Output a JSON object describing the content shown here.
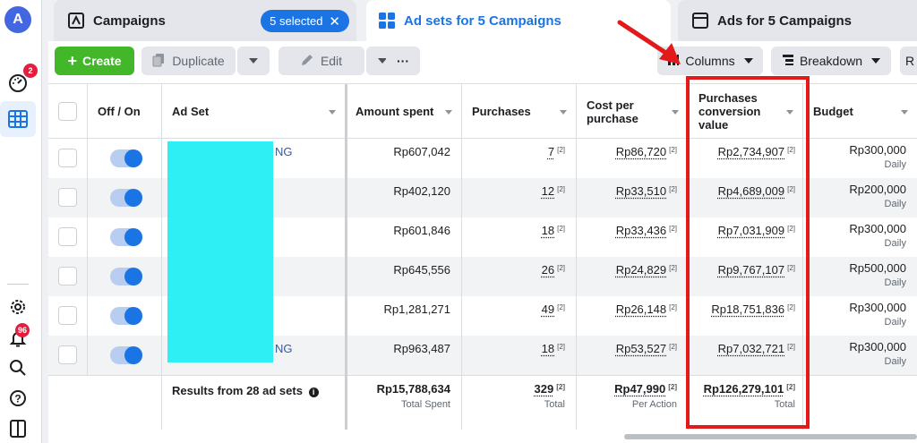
{
  "rail": {
    "avatar_letter": "A",
    "performance_badge": "2",
    "notifications_badge": "96"
  },
  "tabs": {
    "campaigns": {
      "label": "Campaigns",
      "selected_pill": "5 selected"
    },
    "adsets": {
      "label": "Ad sets for 5 Campaigns"
    },
    "ads": {
      "label": "Ads for 5 Campaigns"
    }
  },
  "toolbar": {
    "create_label": "Create",
    "duplicate_label": "Duplicate",
    "edit_label": "Edit",
    "more_label": "···",
    "columns_label": "Columns",
    "breakdown_label": "Breakdown",
    "r_label": "R"
  },
  "table": {
    "headers": {
      "off_on": "Off / On",
      "ad_set": "Ad Set",
      "amount_spent": "Amount spent",
      "purchases": "Purchases",
      "cost_per_purchase": "Cost per purchase",
      "conversion_value": "Purchases conversion value",
      "budget": "Budget"
    },
    "sup_marker": "[2]",
    "rows": [
      {
        "name_fragment": "NG",
        "amount_spent": "Rp607,042",
        "purchases": "7",
        "cost_per_purchase": "Rp86,720",
        "conversion_value": "Rp2,734,907",
        "budget": "Rp300,000",
        "budget_type": "Daily"
      },
      {
        "name_fragment": "",
        "amount_spent": "Rp402,120",
        "purchases": "12",
        "cost_per_purchase": "Rp33,510",
        "conversion_value": "Rp4,689,009",
        "budget": "Rp200,000",
        "budget_type": "Daily"
      },
      {
        "name_fragment": "",
        "amount_spent": "Rp601,846",
        "purchases": "18",
        "cost_per_purchase": "Rp33,436",
        "conversion_value": "Rp7,031,909",
        "budget": "Rp300,000",
        "budget_type": "Daily"
      },
      {
        "name_fragment": "",
        "amount_spent": "Rp645,556",
        "purchases": "26",
        "cost_per_purchase": "Rp24,829",
        "conversion_value": "Rp9,767,107",
        "budget": "Rp500,000",
        "budget_type": "Daily"
      },
      {
        "name_fragment": "",
        "amount_spent": "Rp1,281,271",
        "purchases": "49",
        "cost_per_purchase": "Rp26,148",
        "conversion_value": "Rp18,751,836",
        "budget": "Rp300,000",
        "budget_type": "Daily"
      },
      {
        "name_fragment": "NG",
        "amount_spent": "Rp963,487",
        "purchases": "18",
        "cost_per_purchase": "Rp53,527",
        "conversion_value": "Rp7,032,721",
        "budget": "Rp300,000",
        "budget_type": "Daily"
      }
    ],
    "totals": {
      "label": "Results from 28 ad sets",
      "amount_spent": "Rp15,788,634",
      "amount_spent_sub": "Total Spent",
      "purchases": "329",
      "purchases_sub": "Total",
      "cost_per_purchase": "Rp47,990",
      "cost_per_purchase_sub": "Per Action",
      "conversion_value": "Rp126,279,101",
      "conversion_value_sub": "Total"
    }
  },
  "colors": {
    "accent": "#1b74e4",
    "create_green": "#42b72a",
    "highlight_red": "#e21a1a",
    "redaction_cyan": "#2ef0f4"
  }
}
